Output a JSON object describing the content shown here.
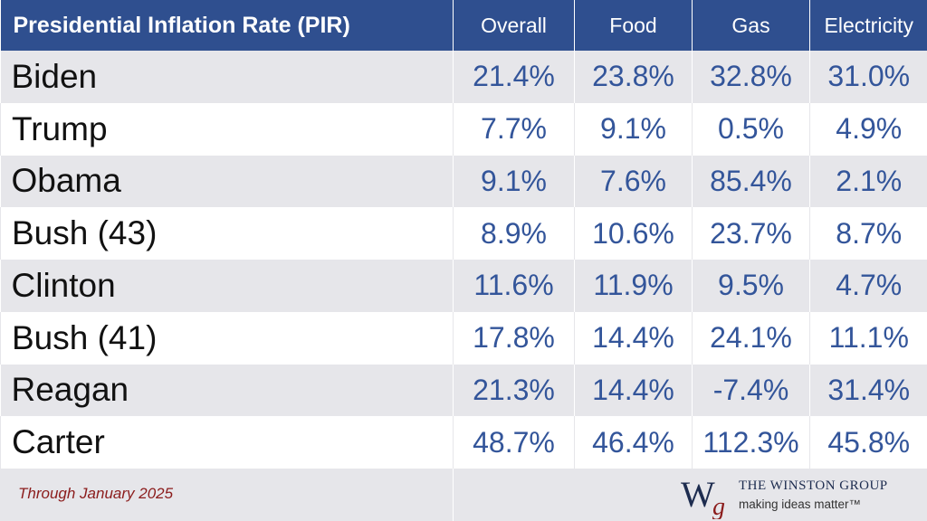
{
  "chart_data": {
    "type": "table",
    "title": "Presidential Inflation Rate (PIR)",
    "columns": [
      "Overall",
      "Food",
      "Gas",
      "Electricity"
    ],
    "rows": [
      {
        "name": "Biden",
        "values": [
          "21.4%",
          "23.8%",
          "32.8%",
          "31.0%"
        ]
      },
      {
        "name": "Trump",
        "values": [
          "7.7%",
          "9.1%",
          "0.5%",
          "4.9%"
        ]
      },
      {
        "name": "Obama",
        "values": [
          "9.1%",
          "7.6%",
          "85.4%",
          "2.1%"
        ]
      },
      {
        "name": "Bush (43)",
        "values": [
          "8.9%",
          "10.6%",
          "23.7%",
          "8.7%"
        ]
      },
      {
        "name": "Clinton",
        "values": [
          "11.6%",
          "11.9%",
          "9.5%",
          "4.7%"
        ]
      },
      {
        "name": "Bush (41)",
        "values": [
          "17.8%",
          "14.4%",
          "24.1%",
          "11.1%"
        ]
      },
      {
        "name": "Reagan",
        "values": [
          "21.3%",
          "14.4%",
          "-7.4%",
          "31.4%"
        ]
      },
      {
        "name": "Carter",
        "values": [
          "48.7%",
          "46.4%",
          "112.3%",
          "45.8%"
        ]
      }
    ]
  },
  "footnote": "Through January 2025",
  "logo": {
    "name": "THE WINSTON GROUP",
    "tagline": "making ideas matter™",
    "mark_letters": "Wg"
  },
  "colors": {
    "header_bg": "#2f4f8f",
    "value_text": "#33559a",
    "stripe": "#e6e6ea",
    "footnote": "#8b1c1c"
  }
}
